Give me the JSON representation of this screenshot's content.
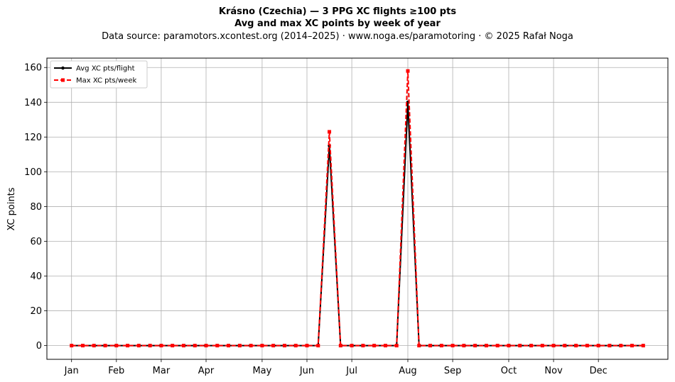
{
  "chart_data": {
    "type": "line",
    "title": "Krásno (Czechia)  —  3 PPG XC flights ≥100 pts",
    "subtitle": "Avg and max XC points by week of year",
    "source_note": "Data source: paramotors.xcontest.org (2014–2025)  ·  www.noga.es/paramotoring  ·  © 2025 Rafał Noga",
    "xlabel": "",
    "ylabel": "XC points",
    "ylim": [
      -7.9,
      165.4
    ],
    "yticks": [
      0,
      20,
      40,
      60,
      80,
      100,
      120,
      140,
      160
    ],
    "xlim": [
      -2.2,
      53.2
    ],
    "month_ticks": [
      {
        "label": "Jan",
        "week": 0
      },
      {
        "label": "Feb",
        "week": 4
      },
      {
        "label": "Mar",
        "week": 8
      },
      {
        "label": "Apr",
        "week": 12
      },
      {
        "label": "May",
        "week": 17
      },
      {
        "label": "Jun",
        "week": 21
      },
      {
        "label": "Jul",
        "week": 25
      },
      {
        "label": "Aug",
        "week": 30
      },
      {
        "label": "Sep",
        "week": 34
      },
      {
        "label": "Oct",
        "week": 39
      },
      {
        "label": "Nov",
        "week": 43
      },
      {
        "label": "Dec",
        "week": 47
      }
    ],
    "grid": true,
    "legend_position": "top-left",
    "series": [
      {
        "name": "Avg XC pts/flight",
        "color": "#000000",
        "marker": "circle",
        "linestyle": "solid",
        "x": [
          0,
          1,
          2,
          3,
          4,
          5,
          6,
          7,
          8,
          9,
          10,
          11,
          12,
          13,
          14,
          15,
          16,
          17,
          18,
          19,
          20,
          21,
          22,
          23,
          24,
          25,
          26,
          27,
          28,
          29,
          30,
          31,
          32,
          33,
          34,
          35,
          36,
          37,
          38,
          39,
          40,
          41,
          42,
          43,
          44,
          45,
          46,
          47,
          48,
          49,
          50,
          51
        ],
        "values": [
          0,
          0,
          0,
          0,
          0,
          0,
          0,
          0,
          0,
          0,
          0,
          0,
          0,
          0,
          0,
          0,
          0,
          0,
          0,
          0,
          0,
          0,
          0,
          115,
          0,
          0,
          0,
          0,
          0,
          0,
          140,
          0,
          0,
          0,
          0,
          0,
          0,
          0,
          0,
          0,
          0,
          0,
          0,
          0,
          0,
          0,
          0,
          0,
          0,
          0,
          0,
          0
        ]
      },
      {
        "name": "Max XC pts/week",
        "color": "#ff0000",
        "marker": "square",
        "linestyle": "dashed",
        "x": [
          0,
          1,
          2,
          3,
          4,
          5,
          6,
          7,
          8,
          9,
          10,
          11,
          12,
          13,
          14,
          15,
          16,
          17,
          18,
          19,
          20,
          21,
          22,
          23,
          24,
          25,
          26,
          27,
          28,
          29,
          30,
          31,
          32,
          33,
          34,
          35,
          36,
          37,
          38,
          39,
          40,
          41,
          42,
          43,
          44,
          45,
          46,
          47,
          48,
          49,
          50,
          51
        ],
        "values": [
          0,
          0,
          0,
          0,
          0,
          0,
          0,
          0,
          0,
          0,
          0,
          0,
          0,
          0,
          0,
          0,
          0,
          0,
          0,
          0,
          0,
          0,
          0,
          123,
          0,
          0,
          0,
          0,
          0,
          0,
          158,
          0,
          0,
          0,
          0,
          0,
          0,
          0,
          0,
          0,
          0,
          0,
          0,
          0,
          0,
          0,
          0,
          0,
          0,
          0,
          0,
          0
        ]
      }
    ]
  }
}
